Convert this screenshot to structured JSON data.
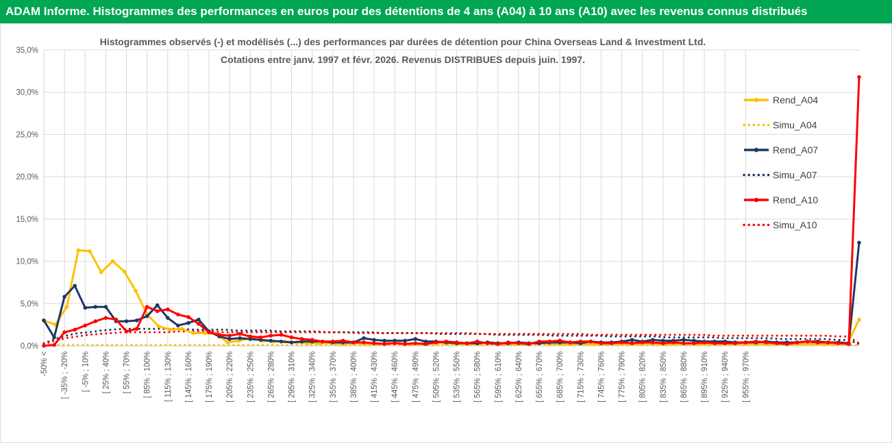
{
  "header": {
    "title": "ADAM Informe. Histogrammes des performances en euros pour des détentions de 4 ans (A04) à 10 ans (A10) avec les revenus connus distribués"
  },
  "colors": {
    "header_bg": "#00a651",
    "A04": "#ffc000",
    "A07": "#1f3864",
    "A10": "#ff0000",
    "grid": "#d9d9d9"
  },
  "chart_data": {
    "type": "line",
    "title": [
      "Histogrammes observés (-) et modélisés (...)  des performances par durées de détention pour China Overseas Land & Investment Ltd.",
      "Cotations entre janv. 1997 et févr. 2026. Revenus DISTRIBUES depuis juin. 1997."
    ],
    "ylim": [
      0,
      35
    ],
    "yticks": [
      "0,0%",
      "5,0%",
      "10,0%",
      "15,0%",
      "20,0%",
      "25,0%",
      "30,0%",
      "35,0%"
    ],
    "x_labels": [
      "-50% <",
      "[ -35% ; -20%",
      "[ -5% ; 10%",
      "[ 25% ; 40%",
      "[ 55% ; 70%",
      "[ 85% ; 100%",
      "[ 115% ; 130%",
      "[ 145% ; 160%",
      "[ 175% ; 190%",
      "[ 205% ; 220%",
      "[ 235% ; 250%",
      "[ 265% ; 280%",
      "[ 295% ; 310%",
      "[ 325% ; 340%",
      "[ 355% ; 370%",
      "[ 385% ; 400%",
      "[ 415% ; 430%",
      "[ 445% ; 460%",
      "[ 475% ; 490%",
      "[ 505% ; 520%",
      "[ 535% ; 550%",
      "[ 565% ; 580%",
      "[ 595% ; 610%",
      "[ 625% ; 640%",
      "[ 655% ; 670%",
      "[ 685% ; 700%",
      "[ 715% ; 730%",
      "[ 745% ; 760%",
      "[ 775% ; 790%",
      "[ 805% ; 820%",
      "[ 835% ; 850%",
      "[ 865% ; 880%",
      "[ 895% ; 910%",
      "[ 925% ; 940%",
      "[ 955% ; 970%"
    ],
    "x_label_every": 2,
    "legend_position": "right",
    "series": [
      {
        "name": "Rend_A04",
        "style": "solid",
        "values": [
          3.0,
          2.5,
          4.6,
          11.3,
          11.2,
          8.7,
          10.0,
          8.8,
          6.5,
          3.7,
          2.3,
          1.9,
          2.0,
          1.5,
          1.5,
          1.4,
          0.4,
          0.6,
          0.9,
          0.6,
          0.5,
          0.5,
          0.4,
          0.3,
          0.3,
          0.3,
          0.2,
          0.3,
          0.2,
          0.2,
          0.3,
          0.3,
          0.2,
          0.2,
          0.3,
          0.3,
          0.2,
          0.2,
          0.2,
          0.3,
          0.2,
          0.2,
          0.2,
          0.3,
          0.2,
          0.2,
          0.2,
          0.2,
          0.2,
          0.2,
          0.2,
          0.2,
          0.2,
          0.2,
          0.2,
          0.2,
          0.2,
          0.2,
          0.2,
          0.2,
          0.2,
          0.2,
          0.2,
          0.2,
          0.2,
          0.2,
          0.2,
          0.2,
          0.2,
          0.2,
          0.3,
          3.1
        ]
      },
      {
        "name": "Simu_A04",
        "style": "dotted",
        "values": [
          0.1,
          0.1,
          0.1,
          0.1,
          0.1,
          0.1,
          0.1,
          0.1,
          0.1,
          0.1,
          0.1,
          0.1,
          0.1,
          0.1,
          0.1,
          0.1,
          0.1,
          0.1,
          0.1,
          0.1,
          0.1,
          0.1,
          0.1,
          0.1,
          0.1,
          0.1,
          0.1,
          0.1,
          0.1,
          0.1,
          0.1,
          0.1,
          0.1,
          0.1,
          0.1,
          0.1,
          0.1,
          0.1,
          0.1,
          0.1,
          0.1,
          0.1,
          0.1,
          0.1,
          0.1,
          0.1,
          0.1,
          0.1,
          0.1,
          0.1,
          0.1,
          0.1,
          0.1,
          0.1,
          0.1,
          0.1,
          0.1,
          0.1,
          0.1,
          0.1,
          0.1,
          0.1,
          0.1,
          0.1,
          0.1,
          0.1,
          0.1,
          0.1,
          0.1,
          0.1,
          0.1,
          0.1
        ]
      },
      {
        "name": "Rend_A07",
        "style": "solid",
        "values": [
          3.0,
          1.0,
          5.8,
          7.1,
          4.5,
          4.6,
          4.6,
          2.9,
          2.9,
          3.0,
          3.5,
          4.8,
          3.3,
          2.4,
          2.7,
          3.1,
          1.7,
          1.1,
          0.8,
          0.9,
          0.8,
          0.7,
          0.6,
          0.5,
          0.4,
          0.5,
          0.5,
          0.5,
          0.4,
          0.4,
          0.4,
          0.9,
          0.7,
          0.6,
          0.6,
          0.6,
          0.8,
          0.5,
          0.5,
          0.4,
          0.3,
          0.3,
          0.3,
          0.4,
          0.3,
          0.3,
          0.4,
          0.3,
          0.3,
          0.4,
          0.4,
          0.4,
          0.3,
          0.5,
          0.4,
          0.4,
          0.5,
          0.7,
          0.5,
          0.7,
          0.6,
          0.6,
          0.7,
          0.6,
          0.5,
          0.5,
          0.5,
          0.4,
          0.4,
          0.4,
          0.5,
          0.4,
          0.4,
          0.4,
          0.5,
          0.5,
          0.4,
          0.4,
          0.3,
          12.2
        ]
      },
      {
        "name": "Simu_A07",
        "style": "dotted",
        "values": [
          0.3,
          0.8,
          1.2,
          1.5,
          1.6,
          1.8,
          1.9,
          2.0,
          2.0,
          2.0,
          2.0,
          2.0,
          2.0,
          1.9,
          1.9,
          1.9,
          1.9,
          1.8,
          1.8,
          1.8,
          1.8,
          1.7,
          1.7,
          1.7,
          1.7,
          1.6,
          1.6,
          1.6,
          1.6,
          1.6,
          1.5,
          1.5,
          1.5,
          1.5,
          1.5,
          1.4,
          1.4,
          1.4,
          1.4,
          1.4,
          1.3,
          1.3,
          1.3,
          1.3,
          1.3,
          1.2,
          1.2,
          1.2,
          1.2,
          1.2,
          1.1,
          1.1,
          1.1,
          1.1,
          1.1,
          1.0,
          1.0,
          1.0,
          1.0,
          1.0,
          0.9,
          0.9,
          0.9,
          0.9,
          0.9,
          0.8,
          0.8,
          0.8,
          0.8,
          0.8,
          0.7,
          0.7,
          0.2
        ]
      },
      {
        "name": "Rend_A10",
        "style": "solid",
        "values": [
          0.0,
          0.1,
          1.6,
          1.9,
          2.4,
          2.9,
          3.3,
          3.1,
          1.7,
          2.0,
          4.6,
          4.1,
          4.3,
          3.7,
          3.4,
          2.6,
          1.6,
          1.3,
          1.2,
          1.4,
          1.1,
          1.0,
          1.2,
          1.3,
          1.0,
          0.8,
          0.7,
          0.5,
          0.5,
          0.6,
          0.4,
          0.4,
          0.3,
          0.2,
          0.3,
          0.2,
          0.3,
          0.2,
          0.4,
          0.5,
          0.4,
          0.3,
          0.5,
          0.3,
          0.2,
          0.4,
          0.3,
          0.2,
          0.5,
          0.5,
          0.6,
          0.4,
          0.5,
          0.5,
          0.3,
          0.3,
          0.4,
          0.3,
          0.4,
          0.4,
          0.3,
          0.4,
          0.3,
          0.3,
          0.4,
          0.3,
          0.3,
          0.3,
          0.4,
          0.5,
          0.4,
          0.3,
          0.2,
          0.4,
          0.5,
          0.4,
          0.4,
          0.3,
          0.2,
          31.8
        ]
      },
      {
        "name": "Simu_A10",
        "style": "dotted",
        "values": [
          0.2,
          0.6,
          0.9,
          1.1,
          1.3,
          1.4,
          1.5,
          1.6,
          1.6,
          1.6,
          1.6,
          1.6,
          1.7,
          1.7,
          1.7,
          1.7,
          1.6,
          1.6,
          1.6,
          1.6,
          1.6,
          1.6,
          1.6,
          1.6,
          1.6,
          1.6,
          1.6,
          1.6,
          1.5,
          1.5,
          1.5,
          1.5,
          1.5,
          1.5,
          1.5,
          1.5,
          1.5,
          1.5,
          1.5,
          1.4,
          1.4,
          1.4,
          1.4,
          1.4,
          1.4,
          1.4,
          1.4,
          1.4,
          1.4,
          1.3,
          1.3,
          1.3,
          1.3,
          1.3,
          1.3,
          1.3,
          1.3,
          1.3,
          1.3,
          1.3,
          1.2,
          1.2,
          1.2,
          1.2,
          1.2,
          1.2,
          1.2,
          1.2,
          1.2,
          1.2,
          1.2,
          1.1,
          1.1,
          0.3
        ]
      }
    ]
  }
}
